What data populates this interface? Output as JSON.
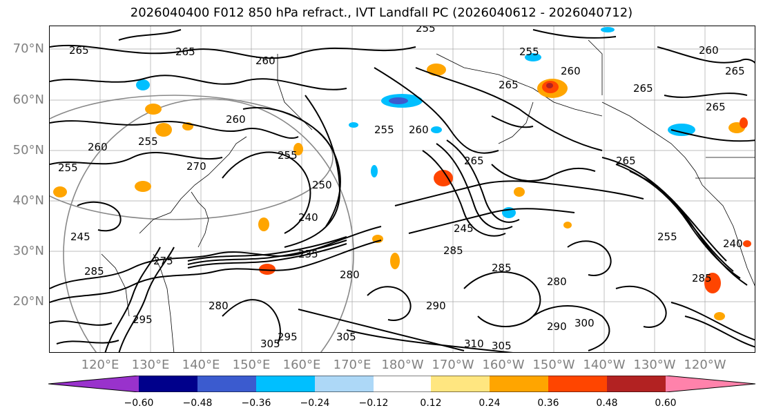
{
  "title": "2026040400 F012 850 hPa refract., IVT Landfall PC (2026040612 - 2026040712)",
  "map": {
    "lat_labels": [
      "70°N",
      "60°N",
      "50°N",
      "40°N",
      "30°N",
      "20°N"
    ],
    "lon_labels": [
      "120°E",
      "130°E",
      "140°E",
      "150°E",
      "160°E",
      "170°E",
      "180°W",
      "170°W",
      "160°W",
      "150°W",
      "140°W",
      "130°W",
      "120°W"
    ],
    "contour_labels": [
      "265",
      "265",
      "260",
      "255",
      "255",
      "265",
      "260",
      "265",
      "260",
      "265",
      "265",
      "260",
      "255",
      "255",
      "260",
      "255",
      "270",
      "255",
      "250",
      "240",
      "265",
      "260",
      "265",
      "245",
      "235",
      "280",
      "285",
      "280",
      "290",
      "285",
      "275",
      "280",
      "295",
      "305",
      "305",
      "310",
      "305",
      "290",
      "300",
      "240",
      "255",
      "245",
      "285",
      "285",
      "295"
    ],
    "land_color": "#ffffff",
    "grid_color": "#808080",
    "contour_color": "#000000"
  },
  "colorbar": {
    "ticks": [
      "−0.60",
      "−0.48",
      "−0.36",
      "−0.24",
      "−0.12",
      "0.12",
      "0.24",
      "0.36",
      "0.48",
      "0.60"
    ],
    "colors": [
      "#9932cc",
      "#00008b",
      "#3b5bcf",
      "#00bfff",
      "#add8f7",
      "#ffffff",
      "#ffe680",
      "#ffa500",
      "#ff4500",
      "#b22222",
      "#ff82ab"
    ]
  }
}
